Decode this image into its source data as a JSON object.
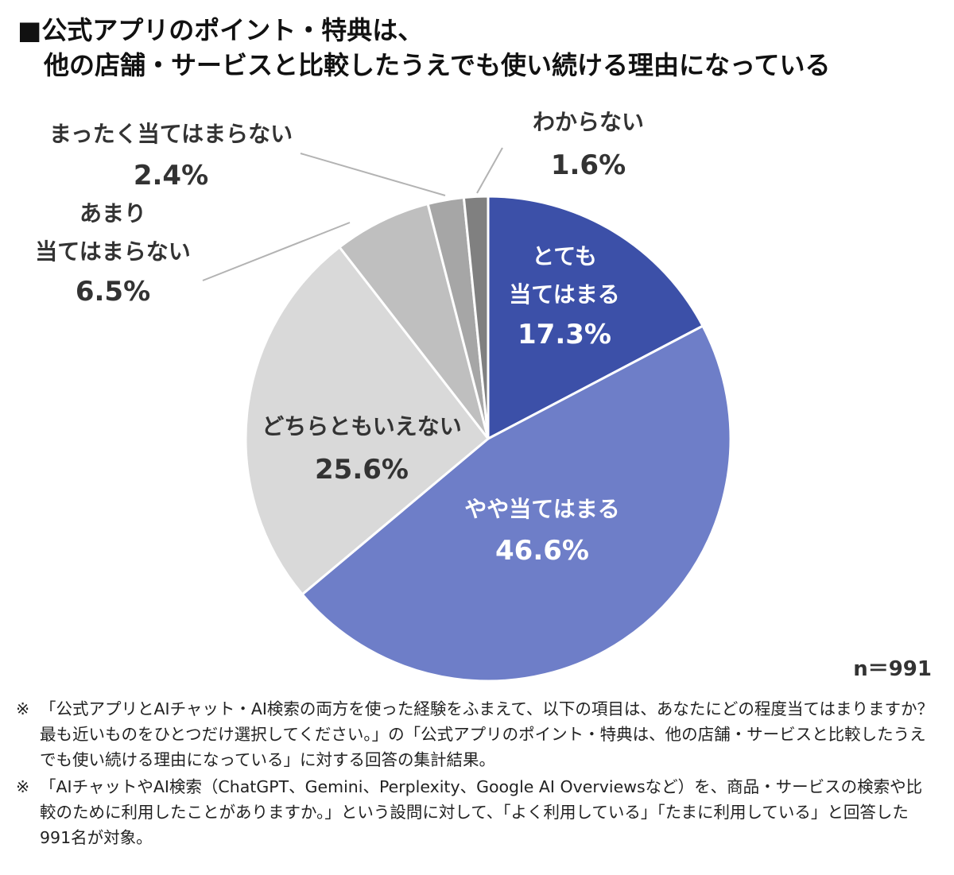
{
  "header": {
    "title_line1": "■公式アプリのポイント・特典は、",
    "title_line2": "他の店舗・サービスと比較したうえでも使い続ける理由になっている"
  },
  "chart_data": {
    "type": "pie",
    "start_angle_deg": 0,
    "direction": "clockwise",
    "slices": [
      {
        "label": "とても\n当てはまる",
        "value": 17.3,
        "display": "17.3%",
        "color": "#3c50a8",
        "text_color": "#ffffff"
      },
      {
        "label": "やや当てはまる",
        "value": 46.6,
        "display": "46.6%",
        "color": "#6e7ec8",
        "text_color": "#ffffff"
      },
      {
        "label": "どちらともいえない",
        "value": 25.6,
        "display": "25.6%",
        "color": "#d9d9d9",
        "text_color": "#333333"
      },
      {
        "label": "あまり\n当てはまらない",
        "value": 6.5,
        "display": "6.5%",
        "color": "#bfbfbf",
        "text_color": "#333333"
      },
      {
        "label": "まったく当てはまらない",
        "value": 2.4,
        "display": "2.4%",
        "color": "#a6a6a6",
        "text_color": "#333333"
      },
      {
        "label": "わからない",
        "value": 1.6,
        "display": "1.6%",
        "color": "#808080",
        "text_color": "#333333"
      }
    ]
  },
  "sample_size": "n＝991",
  "notes": [
    {
      "mark": "※",
      "text": "「公式アプリとAIチャット・AI検索の両方を使った経験をふまえて、以下の項目は、あなたにどの程度当てはまりますか？最も近いものをひとつだけ選択してください。」の「公式アプリのポイント・特典は、他の店舗・サービスと比較したうえでも使い続ける理由になっている」に対する回答の集計結果。"
    },
    {
      "mark": "※",
      "text": "「AIチャットやAI検索（ChatGPT、Gemini、Perplexity、Google AI Overviewsなど）を、商品・サービスの検索や比較のために利用したことがありますか。」という設問に対して、「よく利用している」「たまに利用している」と回答した991名が対象。"
    }
  ]
}
